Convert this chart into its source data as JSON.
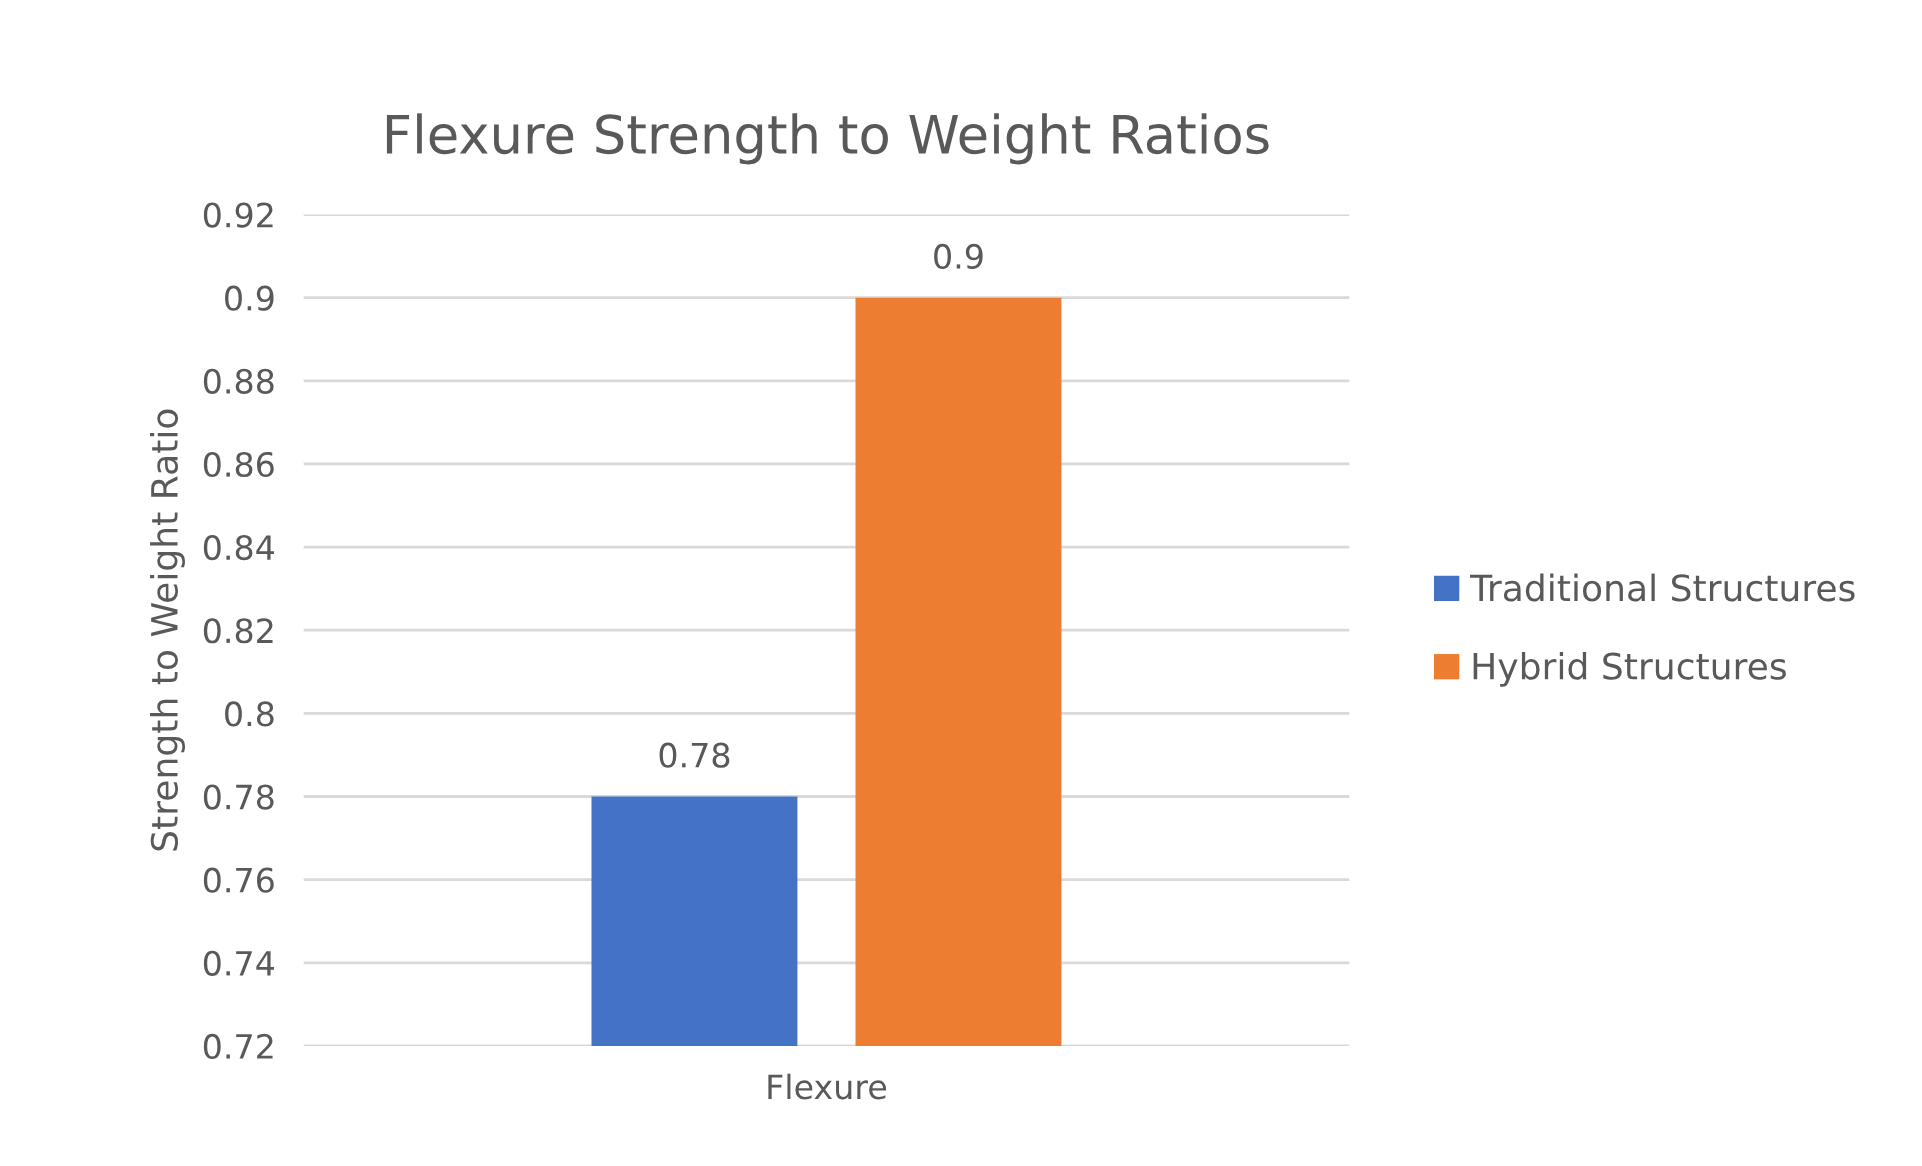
{
  "chart_data": {
    "type": "bar",
    "title": "Flexure Strength to Weight Ratios",
    "ylabel": "Strength to Weight Ratio",
    "categories": [
      "Flexure"
    ],
    "series": [
      {
        "name": "Traditional Structures",
        "color": "#4472c4",
        "values": [
          0.78
        ]
      },
      {
        "name": "Hybrid Structures",
        "color": "#ed7d31",
        "values": [
          0.9
        ]
      }
    ],
    "ylim": [
      0.72,
      0.92
    ],
    "yticks": [
      0.72,
      0.74,
      0.76,
      0.78,
      {
        "value": 0.8,
        "label": "0.8"
      },
      0.82,
      0.84,
      0.86,
      0.88,
      {
        "value": 0.9,
        "label": "0.9"
      },
      0.92
    ],
    "grid": "y",
    "legend": "right",
    "data_labels": true
  }
}
